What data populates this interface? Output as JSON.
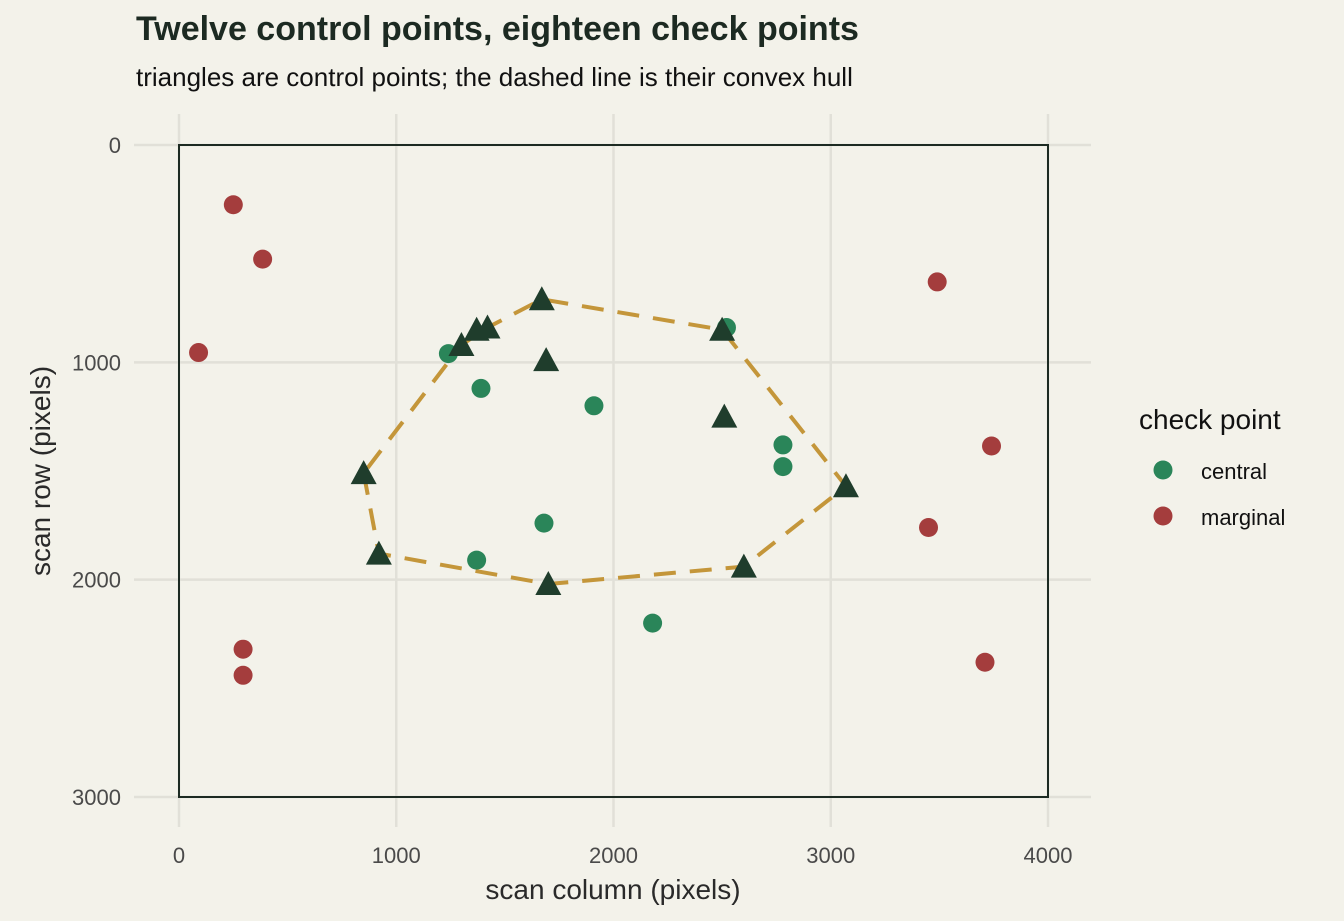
{
  "chart_data": {
    "type": "scatter",
    "title": "Twelve control points, eighteen check points",
    "subtitle": "triangles are control points; the dashed line is their convex hull",
    "xlabel": "scan column (pixels)",
    "ylabel": "scan row (pixels)",
    "xlim": [
      0,
      4000
    ],
    "ylim": [
      0,
      3000
    ],
    "y_reversed": true,
    "x_ticks": [
      0,
      1000,
      2000,
      3000,
      4000
    ],
    "y_ticks": [
      0,
      1000,
      2000,
      3000
    ],
    "x_tick_labels": [
      "0",
      "1000",
      "2000",
      "3000",
      "4000"
    ],
    "y_tick_labels": [
      "0",
      "1000",
      "2000",
      "3000"
    ],
    "grid": true,
    "legend_title": "check point",
    "legend_position": "right",
    "colors": {
      "central": "#2a8559",
      "marginal": "#a43d3d",
      "control": "#1f3d2c",
      "hull": "#c4963a",
      "frame": "#1c2a22",
      "grid": "#e1e0d8"
    },
    "control_points": [
      {
        "x": 850,
        "y": 1510
      },
      {
        "x": 920,
        "y": 1880
      },
      {
        "x": 1700,
        "y": 2020
      },
      {
        "x": 2600,
        "y": 1940
      },
      {
        "x": 3070,
        "y": 1570
      },
      {
        "x": 2500,
        "y": 850
      },
      {
        "x": 1670,
        "y": 710
      },
      {
        "x": 1420,
        "y": 840
      },
      {
        "x": 1370,
        "y": 850
      },
      {
        "x": 1300,
        "y": 920
      },
      {
        "x": 1690,
        "y": 990
      },
      {
        "x": 2510,
        "y": 1250
      }
    ],
    "hull": [
      {
        "x": 850,
        "y": 1510
      },
      {
        "x": 920,
        "y": 1880
      },
      {
        "x": 1700,
        "y": 2020
      },
      {
        "x": 2600,
        "y": 1940
      },
      {
        "x": 3070,
        "y": 1570
      },
      {
        "x": 2500,
        "y": 850
      },
      {
        "x": 1670,
        "y": 710
      },
      {
        "x": 1420,
        "y": 840
      },
      {
        "x": 1300,
        "y": 920
      }
    ],
    "series": [
      {
        "name": "central",
        "points": [
          {
            "x": 1240,
            "y": 960
          },
          {
            "x": 1390,
            "y": 1120
          },
          {
            "x": 1910,
            "y": 1200
          },
          {
            "x": 2520,
            "y": 840
          },
          {
            "x": 2780,
            "y": 1380
          },
          {
            "x": 2780,
            "y": 1480
          },
          {
            "x": 1680,
            "y": 1740
          },
          {
            "x": 1370,
            "y": 1910
          },
          {
            "x": 2180,
            "y": 2200
          }
        ]
      },
      {
        "name": "marginal",
        "points": [
          {
            "x": 250,
            "y": 275
          },
          {
            "x": 385,
            "y": 525
          },
          {
            "x": 90,
            "y": 955
          },
          {
            "x": 295,
            "y": 2320
          },
          {
            "x": 295,
            "y": 2440
          },
          {
            "x": 3490,
            "y": 630
          },
          {
            "x": 3740,
            "y": 1385
          },
          {
            "x": 3450,
            "y": 1760
          },
          {
            "x": 3710,
            "y": 2380
          }
        ]
      }
    ]
  }
}
